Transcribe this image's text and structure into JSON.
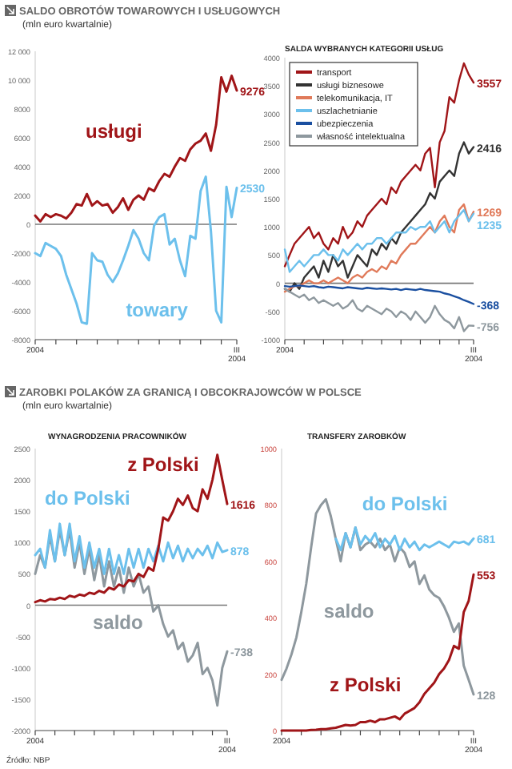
{
  "chart_data": [
    {
      "type": "line",
      "title": "SALDO OBROTÓW TOWAROWYCH I USŁUGOWYCH",
      "subtitle": "(mln euro kwartalnie)",
      "categories": [
        "2004",
        null,
        null,
        null,
        null,
        null,
        null,
        null,
        null,
        null,
        null,
        null,
        null,
        null,
        null,
        null,
        null,
        null,
        null,
        null,
        null,
        null,
        null,
        null,
        null,
        null,
        null,
        null,
        null,
        null,
        null,
        null,
        null,
        null,
        null,
        null,
        null,
        null,
        null,
        "III 2004"
      ],
      "ylim": [
        -8000,
        12000
      ],
      "yticks": [
        {
          "value": 12000,
          "label": "12 000"
        },
        {
          "value": 10000,
          "label": "10 000"
        },
        8000,
        6000,
        4000,
        2000,
        0,
        -2000,
        -4000,
        -6000,
        -8000
      ],
      "legend": false,
      "series": [
        {
          "name": "usługi",
          "color": "#a01518",
          "values": [
            600,
            200,
            700,
            500,
            700,
            600,
            400,
            800,
            1400,
            1300,
            2100,
            1300,
            1600,
            1300,
            1400,
            800,
            1200,
            1800,
            1000,
            1700,
            2000,
            1700,
            2500,
            2300,
            3000,
            3500,
            3300,
            4000,
            4600,
            4400,
            5200,
            5600,
            5800,
            6300,
            5100,
            6900,
            10200,
            9200,
            10300,
            9276
          ],
          "value_labels": [
            null,
            null,
            null,
            null,
            null,
            null,
            null,
            null,
            null,
            null,
            null,
            null,
            null,
            null,
            null,
            null,
            null,
            null,
            null,
            null,
            null,
            null,
            null,
            null,
            null,
            null,
            null,
            null,
            null,
            null,
            null,
            null,
            null,
            null,
            null,
            null,
            null,
            null,
            null,
            "9276"
          ]
        },
        {
          "name": "towary",
          "color": "#6cc0ec",
          "values": [
            -2000,
            -2200,
            -1300,
            -1500,
            -1700,
            -2200,
            -3500,
            -4500,
            -5500,
            -6800,
            -6900,
            -2000,
            -2500,
            -2600,
            -3500,
            -4000,
            -3400,
            -2500,
            -1500,
            -400,
            -1000,
            -2000,
            -2500,
            -100,
            500,
            700,
            -1400,
            -1000,
            -2500,
            -3600,
            -800,
            -1000,
            2300,
            3300,
            -500,
            -6000,
            -6800,
            2600,
            500,
            2530
          ],
          "value_labels": [
            null,
            null,
            null,
            null,
            null,
            null,
            null,
            null,
            null,
            null,
            null,
            null,
            null,
            null,
            null,
            null,
            null,
            null,
            null,
            null,
            null,
            null,
            null,
            null,
            null,
            null,
            null,
            null,
            null,
            null,
            null,
            null,
            null,
            null,
            null,
            null,
            null,
            null,
            null,
            "2530"
          ]
        }
      ]
    },
    {
      "type": "line",
      "title": "SALDA WYBRANYCH KATEGORII USŁUG",
      "categories": [
        "2004",
        null,
        null,
        null,
        null,
        null,
        null,
        null,
        null,
        null,
        null,
        null,
        null,
        null,
        null,
        null,
        null,
        null,
        null,
        null,
        null,
        null,
        null,
        null,
        null,
        null,
        null,
        null,
        null,
        null,
        null,
        null,
        null,
        null,
        null,
        null,
        null,
        null,
        null,
        "III 2004"
      ],
      "ylim": [
        -1000,
        4000
      ],
      "yticks": [
        4000,
        3500,
        3000,
        2500,
        2000,
        1500,
        1000,
        500,
        0,
        -500,
        -1000
      ],
      "legend": "top left",
      "series": [
        {
          "name": "transport",
          "color": "#a01518",
          "values": [
            300,
            500,
            700,
            800,
            900,
            1000,
            800,
            900,
            700,
            600,
            800,
            700,
            1000,
            800,
            900,
            1100,
            1000,
            1200,
            1300,
            1400,
            1500,
            1400,
            1700,
            1600,
            1800,
            1900,
            2000,
            2100,
            2000,
            2300,
            2400,
            1700,
            2500,
            2700,
            3300,
            3200,
            3600,
            3900,
            3700,
            3557
          ],
          "value_labels": [
            null,
            null,
            null,
            null,
            null,
            null,
            null,
            null,
            null,
            null,
            null,
            null,
            null,
            null,
            null,
            null,
            null,
            null,
            null,
            null,
            null,
            null,
            null,
            null,
            null,
            null,
            null,
            null,
            null,
            null,
            null,
            null,
            null,
            null,
            null,
            null,
            null,
            null,
            null,
            "3557"
          ]
        },
        {
          "name": "usługi biznesowe",
          "color": "#333333",
          "values": [
            -100,
            -150,
            0,
            -100,
            100,
            200,
            300,
            100,
            400,
            200,
            500,
            300,
            400,
            100,
            300,
            500,
            400,
            300,
            600,
            500,
            700,
            600,
            800,
            700,
            900,
            1000,
            1100,
            1200,
            1300,
            1400,
            1600,
            1500,
            1800,
            1900,
            2000,
            1900,
            2300,
            2500,
            2300,
            2416
          ],
          "value_labels": [
            null,
            null,
            null,
            null,
            null,
            null,
            null,
            null,
            null,
            null,
            null,
            null,
            null,
            null,
            null,
            null,
            null,
            null,
            null,
            null,
            null,
            null,
            null,
            null,
            null,
            null,
            null,
            null,
            null,
            null,
            null,
            null,
            null,
            null,
            null,
            null,
            null,
            null,
            null,
            "2416"
          ]
        },
        {
          "name": "telekomunikacja, IT",
          "color": "#e07a5a",
          "values": [
            -150,
            -100,
            -50,
            -50,
            0,
            50,
            0,
            0,
            50,
            0,
            50,
            100,
            50,
            0,
            100,
            150,
            100,
            200,
            250,
            200,
            300,
            250,
            400,
            350,
            500,
            600,
            700,
            700,
            800,
            900,
            1000,
            900,
            1100,
            1200,
            1000,
            900,
            1300,
            1400,
            1100,
            1269
          ],
          "value_labels": [
            null,
            null,
            null,
            null,
            null,
            null,
            null,
            null,
            null,
            null,
            null,
            null,
            null,
            null,
            null,
            null,
            null,
            null,
            null,
            null,
            null,
            null,
            null,
            null,
            null,
            null,
            null,
            null,
            null,
            null,
            null,
            null,
            null,
            null,
            null,
            null,
            null,
            null,
            null,
            "1269"
          ]
        },
        {
          "name": "uszlachetnianie",
          "color": "#6cc0ec",
          "values": [
            600,
            200,
            300,
            400,
            300,
            400,
            500,
            500,
            600,
            500,
            500,
            400,
            600,
            500,
            600,
            700,
            600,
            700,
            700,
            800,
            800,
            700,
            800,
            900,
            900,
            900,
            1000,
            950,
            1000,
            1000,
            1100,
            900,
            1000,
            1100,
            900,
            1100,
            1200,
            1300,
            1100,
            1235
          ],
          "value_labels": [
            null,
            null,
            null,
            null,
            null,
            null,
            null,
            null,
            null,
            null,
            null,
            null,
            null,
            null,
            null,
            null,
            null,
            null,
            null,
            null,
            null,
            null,
            null,
            null,
            null,
            null,
            null,
            null,
            null,
            null,
            null,
            null,
            null,
            null,
            null,
            null,
            null,
            null,
            null,
            "1235"
          ]
        },
        {
          "name": "ubezpieczenia",
          "color": "#1a4fa0",
          "values": [
            -50,
            -60,
            -50,
            -40,
            -50,
            -60,
            -50,
            -70,
            -80,
            -60,
            -70,
            -80,
            -90,
            -70,
            -80,
            -90,
            -100,
            -80,
            -90,
            -100,
            -90,
            -100,
            -110,
            -100,
            -120,
            -100,
            -110,
            -120,
            -100,
            -120,
            -130,
            -140,
            -150,
            -180,
            -200,
            -230,
            -260,
            -300,
            -330,
            -368
          ],
          "value_labels": [
            null,
            null,
            null,
            null,
            null,
            null,
            null,
            null,
            null,
            null,
            null,
            null,
            null,
            null,
            null,
            null,
            null,
            null,
            null,
            null,
            null,
            null,
            null,
            null,
            null,
            null,
            null,
            null,
            null,
            null,
            null,
            null,
            null,
            null,
            null,
            null,
            null,
            null,
            null,
            "-368"
          ]
        },
        {
          "name": "własność intelektualna",
          "color": "#8e989e",
          "values": [
            -100,
            -150,
            -200,
            -250,
            -200,
            -300,
            -250,
            -350,
            -300,
            -350,
            -400,
            -350,
            -450,
            -400,
            -300,
            -450,
            -500,
            -400,
            -450,
            -500,
            -550,
            -450,
            -500,
            -600,
            -500,
            -550,
            -650,
            -500,
            -600,
            -700,
            -600,
            -400,
            -550,
            -650,
            -700,
            -800,
            -600,
            -850,
            -750,
            -756
          ],
          "value_labels": [
            null,
            null,
            null,
            null,
            null,
            null,
            null,
            null,
            null,
            null,
            null,
            null,
            null,
            null,
            null,
            null,
            null,
            null,
            null,
            null,
            null,
            null,
            null,
            null,
            null,
            null,
            null,
            null,
            null,
            null,
            null,
            null,
            null,
            null,
            null,
            null,
            null,
            null,
            null,
            "-756"
          ]
        }
      ]
    },
    {
      "type": "line",
      "title": "WYNAGRODZENIA PRACOWNIKÓW",
      "annotations": [
        "ZAROBKI POLAKÓW ZA GRANICĄ I OBCOKRAJOWCÓW W POLSCE",
        "(mln euro kwartalnie)"
      ],
      "categories": [
        "2004",
        null,
        null,
        null,
        null,
        null,
        null,
        null,
        null,
        null,
        null,
        null,
        null,
        null,
        null,
        null,
        null,
        null,
        null,
        null,
        null,
        null,
        null,
        null,
        null,
        null,
        null,
        null,
        null,
        null,
        null,
        null,
        null,
        null,
        null,
        null,
        null,
        null,
        null,
        "III 2004"
      ],
      "ylim": [
        -2000,
        2500
      ],
      "yticks": [
        2500,
        2000,
        1500,
        1000,
        500,
        0,
        -500,
        -1000,
        -1500,
        -2000
      ],
      "legend": false,
      "series": [
        {
          "name": "saldo",
          "color": "#8e989e",
          "values": [
            500,
            800,
            600,
            1100,
            700,
            1200,
            800,
            1200,
            600,
            1000,
            500,
            900,
            400,
            800,
            300,
            700,
            300,
            600,
            200,
            600,
            300,
            500,
            200,
            300,
            -100,
            0,
            -300,
            -500,
            -400,
            -700,
            -600,
            -900,
            -800,
            -600,
            -1100,
            -1000,
            -1200,
            -1600,
            -1000,
            -738
          ],
          "value_labels": [
            null,
            null,
            null,
            null,
            null,
            null,
            null,
            null,
            null,
            null,
            null,
            null,
            null,
            null,
            null,
            null,
            null,
            null,
            null,
            null,
            null,
            null,
            null,
            null,
            null,
            null,
            null,
            null,
            null,
            null,
            null,
            null,
            null,
            null,
            null,
            null,
            null,
            null,
            null,
            "-738"
          ]
        },
        {
          "name": "do Polski",
          "color": "#6cc0ec",
          "values": [
            800,
            900,
            600,
            1200,
            700,
            1300,
            800,
            1300,
            700,
            1100,
            600,
            1000,
            600,
            900,
            500,
            900,
            500,
            800,
            500,
            900,
            600,
            900,
            600,
            900,
            700,
            950,
            700,
            1000,
            750,
            950,
            700,
            900,
            750,
            900,
            800,
            950,
            750,
            1000,
            850,
            878
          ],
          "value_labels": [
            null,
            null,
            null,
            null,
            null,
            null,
            null,
            null,
            null,
            null,
            null,
            null,
            null,
            null,
            null,
            null,
            null,
            null,
            null,
            null,
            null,
            null,
            null,
            null,
            null,
            null,
            null,
            null,
            null,
            null,
            null,
            null,
            null,
            null,
            null,
            null,
            null,
            null,
            null,
            "878"
          ]
        },
        {
          "name": "z Polski",
          "color": "#a01518",
          "values": [
            50,
            80,
            60,
            100,
            90,
            120,
            100,
            150,
            130,
            170,
            150,
            200,
            180,
            230,
            200,
            280,
            250,
            330,
            300,
            400,
            380,
            500,
            450,
            600,
            550,
            900,
            1400,
            1350,
            1500,
            1700,
            1600,
            1750,
            1550,
            1500,
            1850,
            1700,
            2000,
            2400,
            2000,
            1616
          ],
          "value_labels": [
            null,
            null,
            null,
            null,
            null,
            null,
            null,
            null,
            null,
            null,
            null,
            null,
            null,
            null,
            null,
            null,
            null,
            null,
            null,
            null,
            null,
            null,
            null,
            null,
            null,
            null,
            null,
            null,
            null,
            null,
            null,
            null,
            null,
            null,
            null,
            null,
            null,
            null,
            null,
            "1616"
          ]
        }
      ]
    },
    {
      "type": "line",
      "title": "TRANSFERY ZAROBKÓW",
      "annotations": [
        "Źródło: NBP"
      ],
      "categories": [
        "2004",
        null,
        null,
        null,
        null,
        null,
        null,
        null,
        null,
        null,
        null,
        null,
        null,
        null,
        null,
        null,
        null,
        null,
        null,
        null,
        null,
        null,
        null,
        null,
        null,
        null,
        null,
        null,
        null,
        null,
        null,
        null,
        null,
        null,
        null,
        null,
        null,
        null,
        null,
        "III 2004"
      ],
      "ylim": [
        0,
        1000
      ],
      "yticks": [
        1000,
        800,
        600,
        400,
        200,
        0
      ],
      "legend": false,
      "series": [
        {
          "name": "saldo",
          "color": "#8e989e",
          "values": [
            180,
            220,
            270,
            330,
            420,
            520,
            650,
            770,
            800,
            820,
            760,
            680,
            600,
            700,
            650,
            720,
            640,
            660,
            670,
            650,
            680,
            640,
            660,
            600,
            650,
            630,
            580,
            600,
            520,
            550,
            500,
            480,
            470,
            440,
            400,
            350,
            380,
            230,
            180,
            128
          ],
          "value_labels": [
            null,
            null,
            null,
            null,
            null,
            null,
            null,
            null,
            null,
            null,
            null,
            null,
            null,
            null,
            null,
            null,
            null,
            null,
            null,
            null,
            null,
            null,
            null,
            null,
            null,
            null,
            null,
            null,
            null,
            null,
            null,
            null,
            null,
            null,
            null,
            null,
            null,
            null,
            null,
            "128"
          ]
        },
        {
          "name": "do Polski",
          "color": "#6cc0ec",
          "values": [
            null,
            null,
            null,
            null,
            null,
            null,
            null,
            null,
            null,
            null,
            null,
            680,
            640,
            700,
            650,
            720,
            660,
            690,
            670,
            700,
            650,
            680,
            660,
            690,
            640,
            680,
            650,
            670,
            640,
            660,
            650,
            660,
            670,
            660,
            650,
            670,
            665,
            670,
            660,
            681
          ],
          "value_labels": [
            null,
            null,
            null,
            null,
            null,
            null,
            null,
            null,
            null,
            null,
            null,
            null,
            null,
            null,
            null,
            null,
            null,
            null,
            null,
            null,
            null,
            null,
            null,
            null,
            null,
            null,
            null,
            null,
            null,
            null,
            null,
            null,
            null,
            null,
            null,
            null,
            null,
            null,
            null,
            "681"
          ]
        },
        {
          "name": "z Polski",
          "color": "#a01518",
          "values": [
            0,
            0,
            0,
            0,
            0,
            0,
            2,
            3,
            5,
            5,
            8,
            10,
            15,
            20,
            18,
            20,
            30,
            30,
            35,
            30,
            40,
            40,
            45,
            50,
            40,
            60,
            70,
            80,
            100,
            130,
            150,
            170,
            200,
            220,
            250,
            300,
            290,
            420,
            460,
            553
          ],
          "value_labels": [
            null,
            null,
            null,
            null,
            null,
            null,
            null,
            null,
            null,
            null,
            null,
            null,
            null,
            null,
            null,
            null,
            null,
            null,
            null,
            null,
            null,
            null,
            null,
            null,
            null,
            null,
            null,
            null,
            null,
            null,
            null,
            null,
            null,
            null,
            null,
            null,
            null,
            null,
            null,
            "553"
          ]
        }
      ]
    }
  ]
}
